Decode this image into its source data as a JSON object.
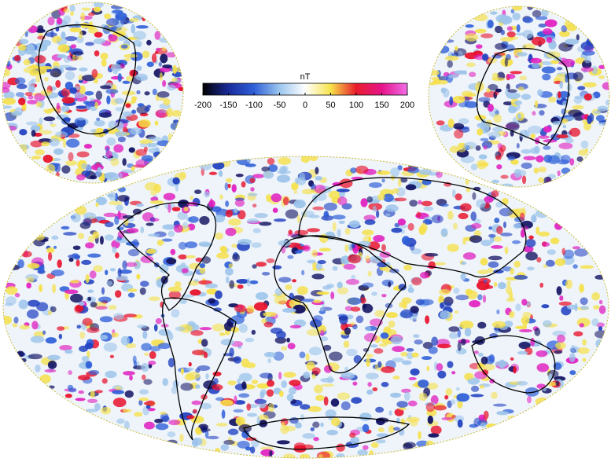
{
  "colorbar": {
    "label": "nT",
    "range": [
      -200,
      200
    ],
    "ticks": [
      -200,
      -150,
      -100,
      -50,
      0,
      50,
      100,
      150,
      200
    ],
    "colors": [
      "#000000",
      "#1a2a9a",
      "#2f5fd8",
      "#9cc6ee",
      "#ffffff",
      "#f7e34a",
      "#e81c2c",
      "#e6148a",
      "#f06ee8"
    ]
  }
}
